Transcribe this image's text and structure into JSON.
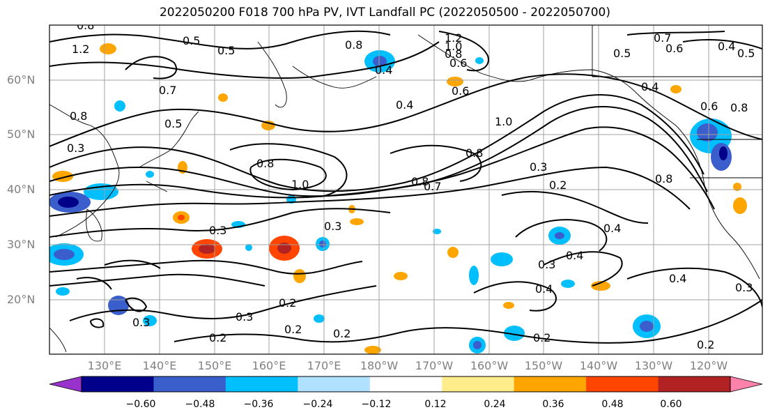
{
  "title": "2022050200 F018 700 hPa PV, IVT Landfall PC (2022050500 - 2022050700)",
  "lat_labels": [
    "60°N",
    "50°N",
    "40°N",
    "30°N",
    "20°N"
  ],
  "lon_labels": [
    "130°E",
    "140°E",
    "150°E",
    "160°E",
    "170°E",
    "180°W",
    "170°W",
    "160°W",
    "150°W",
    "140°W",
    "130°W",
    "120°W"
  ],
  "colorbar": {
    "colors": [
      "#9932cc",
      "#00008b",
      "#3a5fcd",
      "#00bfff",
      "#b0e2ff",
      "#ffffff",
      "#ffec8b",
      "#ffa500",
      "#ff4500",
      "#b22222",
      "#ff82ab"
    ],
    "tick_labels": [
      "−0.60",
      "−0.48",
      "−0.36",
      "−0.24",
      "−0.12",
      "0.12",
      "0.24",
      "0.36",
      "0.48",
      "0.60"
    ]
  },
  "contour_labels": [
    "0.8",
    "1.2",
    "0.5",
    "0.5",
    "1.2",
    "1.0",
    "0.8",
    "0.4",
    "0.8",
    "0.6",
    "0.7",
    "0.6",
    "0.4",
    "0.5",
    "0.5",
    "0.4",
    "0.7",
    "0.4",
    "0.6",
    "0.8",
    "0.6",
    "0.8",
    "0.5",
    "0.3",
    "1.0",
    "0.8",
    "0.8",
    "1.0",
    "0.8",
    "0.7",
    "0.3",
    "0.2",
    "0.8",
    "0.3",
    "0.3",
    "0.4",
    "0.3",
    "0.4",
    "0.4",
    "0.4",
    "0.3",
    "0.2",
    "0.3",
    "0.3",
    "0.2",
    "0.2",
    "0.2",
    "0.2",
    "0.2"
  ]
}
